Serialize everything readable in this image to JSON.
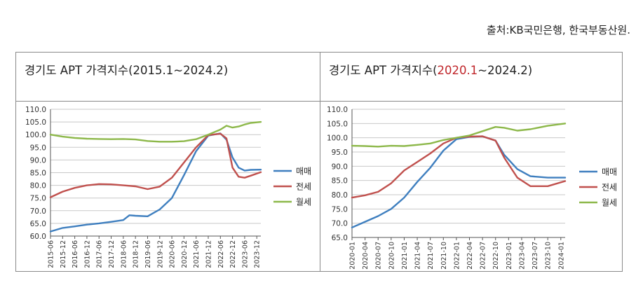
{
  "source": "출처:KB국민은행, 한국부동산원.",
  "colors": {
    "sale": "#3f7fbf",
    "jeonse": "#c0504d",
    "wolse": "#8db84a",
    "grid": "#c8c8c8",
    "axis": "#555555"
  },
  "chart_data": [
    {
      "type": "line",
      "title_prefix": "경기도  APT  가격지수(",
      "title_highlight": "",
      "title_suffix": "2015.1~2024.2)",
      "ylim": [
        60,
        110
      ],
      "yticks": [
        "60.0",
        "65.0",
        "70.0",
        "75.0",
        "80.0",
        "85.0",
        "90.0",
        "95.0",
        "100.0",
        "105.0",
        "110.0"
      ],
      "x_range": [
        "2015-06",
        "2024-02"
      ],
      "xticks": [
        "2015-06",
        "2015-12",
        "2016-06",
        "2016-12",
        "2017-06",
        "2017-12",
        "2018-06",
        "2018-12",
        "2019-06",
        "2019-12",
        "2020-06",
        "2020-12",
        "2021-06",
        "2021-12",
        "2022-06",
        "2022-12",
        "2023-06",
        "2023-12"
      ],
      "legend": [
        "매매",
        "전세",
        "월세"
      ],
      "legend_position": "right",
      "series": [
        {
          "name": "매매",
          "points": [
            [
              "2015-06",
              61.8
            ],
            [
              "2015-12",
              63.2
            ],
            [
              "2016-06",
              63.8
            ],
            [
              "2016-12",
              64.5
            ],
            [
              "2017-06",
              65.0
            ],
            [
              "2017-12",
              65.6
            ],
            [
              "2018-06",
              66.3
            ],
            [
              "2018-09",
              68.2
            ],
            [
              "2018-12",
              68.0
            ],
            [
              "2019-06",
              67.8
            ],
            [
              "2019-12",
              70.5
            ],
            [
              "2020-06",
              75.0
            ],
            [
              "2020-12",
              84.0
            ],
            [
              "2021-06",
              93.5
            ],
            [
              "2021-12",
              99.6
            ],
            [
              "2022-06",
              100.5
            ],
            [
              "2022-09",
              98.0
            ],
            [
              "2022-12",
              91.0
            ],
            [
              "2023-03",
              87.0
            ],
            [
              "2023-06",
              85.8
            ],
            [
              "2023-09",
              86.1
            ],
            [
              "2024-02",
              86.2
            ]
          ]
        },
        {
          "name": "전세",
          "points": [
            [
              "2015-06",
              75.3
            ],
            [
              "2015-12",
              77.5
            ],
            [
              "2016-06",
              79.0
            ],
            [
              "2016-12",
              80.0
            ],
            [
              "2017-06",
              80.5
            ],
            [
              "2017-12",
              80.4
            ],
            [
              "2018-06",
              80.0
            ],
            [
              "2018-12",
              79.6
            ],
            [
              "2019-06",
              78.5
            ],
            [
              "2019-12",
              79.5
            ],
            [
              "2020-06",
              83.0
            ],
            [
              "2020-12",
              89.0
            ],
            [
              "2021-06",
              95.0
            ],
            [
              "2021-12",
              99.8
            ],
            [
              "2022-06",
              100.4
            ],
            [
              "2022-09",
              98.5
            ],
            [
              "2022-12",
              87.0
            ],
            [
              "2023-03",
              83.4
            ],
            [
              "2023-06",
              83.0
            ],
            [
              "2023-09",
              83.8
            ],
            [
              "2024-02",
              85.2
            ]
          ]
        },
        {
          "name": "월세",
          "points": [
            [
              "2015-06",
              100.0
            ],
            [
              "2015-12",
              99.2
            ],
            [
              "2016-06",
              98.7
            ],
            [
              "2016-12",
              98.4
            ],
            [
              "2017-06",
              98.3
            ],
            [
              "2017-12",
              98.2
            ],
            [
              "2018-06",
              98.3
            ],
            [
              "2018-12",
              98.1
            ],
            [
              "2019-06",
              97.5
            ],
            [
              "2019-12",
              97.2
            ],
            [
              "2020-06",
              97.2
            ],
            [
              "2020-12",
              97.4
            ],
            [
              "2021-06",
              98.2
            ],
            [
              "2021-12",
              100.0
            ],
            [
              "2022-06",
              102.0
            ],
            [
              "2022-09",
              103.5
            ],
            [
              "2022-12",
              102.8
            ],
            [
              "2023-03",
              103.2
            ],
            [
              "2023-06",
              104.0
            ],
            [
              "2023-09",
              104.6
            ],
            [
              "2024-02",
              105.0
            ]
          ]
        }
      ]
    },
    {
      "type": "line",
      "title_prefix": "경기도  APT  가격지수(",
      "title_highlight": "2020.1",
      "title_suffix": "~2024.2)",
      "ylim": [
        65,
        110
      ],
      "yticks": [
        "65.0",
        "70.0",
        "75.0",
        "80.0",
        "85.0",
        "90.0",
        "95.0",
        "100.0",
        "105.0",
        "110.0"
      ],
      "x_range": [
        "2020-01",
        "2024-02"
      ],
      "xticks": [
        "2020-01",
        "2020-04",
        "2020-07",
        "2020-10",
        "2021-01",
        "2021-04",
        "2021-07",
        "2021-10",
        "2022-01",
        "2022-04",
        "2022-07",
        "2022-10",
        "2023-01",
        "2023-04",
        "2023-07",
        "2023-10",
        "2024-01"
      ],
      "legend": [
        "매매",
        "전세",
        "월세"
      ],
      "legend_position": "right",
      "series": [
        {
          "name": "매매",
          "points": [
            [
              "2020-01",
              68.5
            ],
            [
              "2020-04",
              70.5
            ],
            [
              "2020-07",
              72.5
            ],
            [
              "2020-10",
              75.0
            ],
            [
              "2021-01",
              79.0
            ],
            [
              "2021-04",
              84.5
            ],
            [
              "2021-07",
              89.5
            ],
            [
              "2021-10",
              95.5
            ],
            [
              "2022-01",
              99.5
            ],
            [
              "2022-04",
              100.3
            ],
            [
              "2022-07",
              100.5
            ],
            [
              "2022-10",
              99.0
            ],
            [
              "2022-12",
              94.0
            ],
            [
              "2023-03",
              89.0
            ],
            [
              "2023-06",
              86.5
            ],
            [
              "2023-10",
              86.0
            ],
            [
              "2024-02",
              86.0
            ]
          ]
        },
        {
          "name": "전세",
          "points": [
            [
              "2020-01",
              79.0
            ],
            [
              "2020-04",
              79.8
            ],
            [
              "2020-07",
              81.0
            ],
            [
              "2020-10",
              84.0
            ],
            [
              "2021-01",
              88.5
            ],
            [
              "2021-04",
              91.5
            ],
            [
              "2021-07",
              94.5
            ],
            [
              "2021-10",
              98.0
            ],
            [
              "2022-01",
              100.0
            ],
            [
              "2022-04",
              100.4
            ],
            [
              "2022-07",
              100.5
            ],
            [
              "2022-10",
              99.0
            ],
            [
              "2022-12",
              93.0
            ],
            [
              "2023-03",
              86.0
            ],
            [
              "2023-06",
              83.0
            ],
            [
              "2023-10",
              83.0
            ],
            [
              "2024-02",
              84.8
            ]
          ]
        },
        {
          "name": "월세",
          "points": [
            [
              "2020-01",
              97.2
            ],
            [
              "2020-04",
              97.1
            ],
            [
              "2020-07",
              96.9
            ],
            [
              "2020-10",
              97.2
            ],
            [
              "2021-01",
              97.1
            ],
            [
              "2021-04",
              97.5
            ],
            [
              "2021-07",
              98.0
            ],
            [
              "2021-10",
              99.2
            ],
            [
              "2022-01",
              100.0
            ],
            [
              "2022-04",
              100.8
            ],
            [
              "2022-07",
              102.3
            ],
            [
              "2022-10",
              103.8
            ],
            [
              "2022-12",
              103.5
            ],
            [
              "2023-03",
              102.5
            ],
            [
              "2023-06",
              103.0
            ],
            [
              "2023-10",
              104.2
            ],
            [
              "2024-02",
              105.0
            ]
          ]
        }
      ]
    }
  ]
}
